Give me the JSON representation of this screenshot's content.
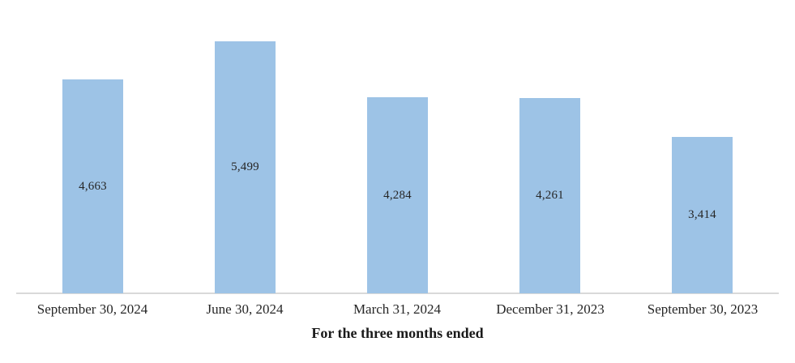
{
  "chart_data": {
    "type": "bar",
    "title": "",
    "xlabel": "For the three months ended",
    "ylabel": "",
    "categories": [
      "September 30, 2024",
      "June 30, 2024",
      "March 31, 2024",
      "December 31, 2023",
      "September 30, 2023"
    ],
    "values": [
      4663,
      5499,
      4284,
      4261,
      3414
    ],
    "data_labels": [
      "4,663",
      "5,499",
      "4,284",
      "4,261",
      "3,414"
    ],
    "data_label_position": "inside-center",
    "ylim": [
      0,
      5499
    ],
    "grid": false,
    "legend": false,
    "colors": {
      "bar_fill": "#9dc3e6",
      "axis_line": "#d9d9d9",
      "data_label_text": "#262626",
      "tick_label_text": "#262626",
      "axis_title_text": "#1a1a1a",
      "background": "#ffffff"
    }
  }
}
